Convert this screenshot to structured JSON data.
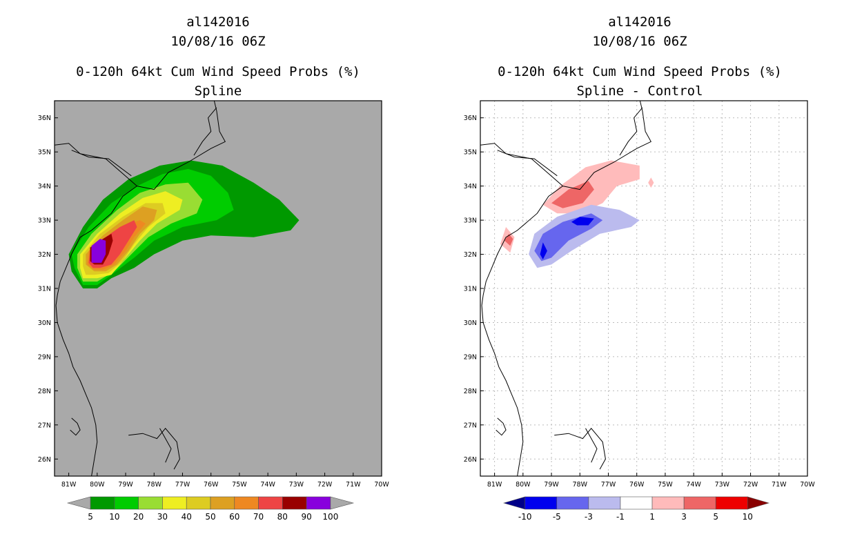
{
  "chart_data": [
    {
      "type": "heatmap",
      "storm_id": "al142016",
      "date": "10/08/16 06Z",
      "title": "0-120h 64kt Cum Wind Speed Probs (%)",
      "subtitle": "Spline",
      "background_color": "#a9a9a9",
      "xlim": [
        -81.5,
        -70
      ],
      "ylim": [
        25.5,
        36.5
      ],
      "x_ticks": [
        "81W",
        "80W",
        "79W",
        "78W",
        "77W",
        "76W",
        "75W",
        "74W",
        "73W",
        "72W",
        "71W",
        "70W"
      ],
      "y_ticks": [
        "26N",
        "27N",
        "28N",
        "29N",
        "30N",
        "31N",
        "32N",
        "33N",
        "34N",
        "35N",
        "36N"
      ],
      "grid": false,
      "colorbar": {
        "labels": [
          "5",
          "10",
          "20",
          "30",
          "40",
          "50",
          "60",
          "70",
          "80",
          "90",
          "100"
        ],
        "colors": [
          "#a9a9a9",
          "#009900",
          "#00cc00",
          "#99dd33",
          "#eeee22",
          "#ddcc22",
          "#dda022",
          "#ee8822",
          "#ee4444",
          "#990000",
          "#8800dd",
          "#a9a9a9"
        ]
      },
      "contours": [
        {
          "level": 5,
          "color": "#009900",
          "points": [
            [
              -80.9,
              31.5
            ],
            [
              -81.0,
              32.0
            ],
            [
              -80.5,
              32.8
            ],
            [
              -79.8,
              33.6
            ],
            [
              -78.9,
              34.2
            ],
            [
              -77.8,
              34.6
            ],
            [
              -76.7,
              34.75
            ],
            [
              -75.6,
              34.6
            ],
            [
              -74.5,
              34.1
            ],
            [
              -73.6,
              33.6
            ],
            [
              -72.9,
              33.0
            ],
            [
              -73.2,
              32.7
            ],
            [
              -74.5,
              32.5
            ],
            [
              -76.0,
              32.55
            ],
            [
              -77.0,
              32.4
            ],
            [
              -78.0,
              32.0
            ],
            [
              -78.7,
              31.6
            ],
            [
              -79.5,
              31.3
            ],
            [
              -80.0,
              31.0
            ],
            [
              -80.5,
              31.0
            ]
          ]
        },
        {
          "level": 10,
          "color": "#00cc00",
          "points": [
            [
              -80.8,
              31.6
            ],
            [
              -80.9,
              32.0
            ],
            [
              -80.3,
              32.8
            ],
            [
              -79.5,
              33.5
            ],
            [
              -78.6,
              34.0
            ],
            [
              -77.7,
              34.35
            ],
            [
              -76.8,
              34.5
            ],
            [
              -76.0,
              34.3
            ],
            [
              -75.4,
              33.8
            ],
            [
              -75.2,
              33.3
            ],
            [
              -75.8,
              33.0
            ],
            [
              -77.0,
              32.8
            ],
            [
              -78.0,
              32.4
            ],
            [
              -78.7,
              31.9
            ],
            [
              -79.5,
              31.4
            ],
            [
              -80.0,
              31.1
            ],
            [
              -80.5,
              31.1
            ]
          ]
        },
        {
          "level": 20,
          "color": "#99dd33",
          "points": [
            [
              -80.7,
              31.6
            ],
            [
              -80.7,
              32.0
            ],
            [
              -80.2,
              32.6
            ],
            [
              -79.3,
              33.3
            ],
            [
              -78.5,
              33.8
            ],
            [
              -77.6,
              34.05
            ],
            [
              -76.8,
              34.1
            ],
            [
              -76.3,
              33.6
            ],
            [
              -76.5,
              33.2
            ],
            [
              -77.4,
              32.9
            ],
            [
              -78.2,
              32.5
            ],
            [
              -78.8,
              32.0
            ],
            [
              -79.4,
              31.5
            ],
            [
              -80.0,
              31.2
            ],
            [
              -80.5,
              31.2
            ]
          ]
        },
        {
          "level": 30,
          "color": "#eeee22",
          "points": [
            [
              -80.6,
              31.6
            ],
            [
              -80.6,
              32.0
            ],
            [
              -80.0,
              32.6
            ],
            [
              -79.2,
              33.2
            ],
            [
              -78.4,
              33.65
            ],
            [
              -77.6,
              33.85
            ],
            [
              -77.0,
              33.6
            ],
            [
              -77.1,
              33.3
            ],
            [
              -77.9,
              32.9
            ],
            [
              -78.5,
              32.4
            ],
            [
              -79.0,
              31.9
            ],
            [
              -79.5,
              31.4
            ],
            [
              -80.0,
              31.3
            ],
            [
              -80.5,
              31.3
            ]
          ]
        },
        {
          "level": 40,
          "color": "#ddcc22",
          "points": [
            [
              -80.5,
              31.65
            ],
            [
              -80.5,
              32.0
            ],
            [
              -79.9,
              32.6
            ],
            [
              -79.1,
              33.1
            ],
            [
              -78.3,
              33.5
            ],
            [
              -77.7,
              33.5
            ],
            [
              -77.6,
              33.2
            ],
            [
              -78.2,
              32.8
            ],
            [
              -78.7,
              32.3
            ],
            [
              -79.1,
              31.8
            ],
            [
              -79.6,
              31.45
            ],
            [
              -80.1,
              31.4
            ],
            [
              -80.4,
              31.4
            ]
          ]
        },
        {
          "level": 50,
          "color": "#dda022",
          "points": [
            [
              -80.4,
              31.7
            ],
            [
              -80.4,
              32.0
            ],
            [
              -79.8,
              32.55
            ],
            [
              -79.1,
              33.0
            ],
            [
              -78.4,
              33.4
            ],
            [
              -77.9,
              33.3
            ],
            [
              -78.0,
              33.0
            ],
            [
              -78.5,
              32.6
            ],
            [
              -78.9,
              32.1
            ],
            [
              -79.3,
              31.7
            ],
            [
              -79.7,
              31.5
            ],
            [
              -80.1,
              31.5
            ]
          ]
        },
        {
          "level": 60,
          "color": "#ee8822",
          "points": [
            [
              -80.35,
              31.7
            ],
            [
              -80.3,
              32.1
            ],
            [
              -79.7,
              32.5
            ],
            [
              -79.0,
              32.85
            ],
            [
              -78.5,
              33.0
            ],
            [
              -78.3,
              32.9
            ],
            [
              -78.7,
              32.5
            ],
            [
              -79.0,
              32.1
            ],
            [
              -79.4,
              31.7
            ],
            [
              -79.8,
              31.55
            ],
            [
              -80.1,
              31.55
            ]
          ]
        },
        {
          "level": 70,
          "color": "#ee4444",
          "points": [
            [
              -80.3,
              31.75
            ],
            [
              -80.25,
              32.1
            ],
            [
              -79.8,
              32.45
            ],
            [
              -79.2,
              32.8
            ],
            [
              -78.7,
              33.0
            ],
            [
              -78.6,
              32.8
            ],
            [
              -78.9,
              32.4
            ],
            [
              -79.2,
              32.0
            ],
            [
              -79.5,
              31.7
            ],
            [
              -79.9,
              31.6
            ],
            [
              -80.15,
              31.6
            ]
          ]
        },
        {
          "level": 80,
          "color": "#990000",
          "points": [
            [
              -80.25,
              31.8
            ],
            [
              -80.25,
              32.2
            ],
            [
              -79.8,
              32.45
            ],
            [
              -79.5,
              32.6
            ],
            [
              -79.45,
              32.4
            ],
            [
              -79.6,
              32.0
            ],
            [
              -79.8,
              31.7
            ],
            [
              -80.1,
              31.7
            ]
          ]
        },
        {
          "level": 90,
          "color": "#8800dd",
          "points": [
            [
              -80.2,
              31.75
            ],
            [
              -80.2,
              32.25
            ],
            [
              -79.9,
              32.45
            ],
            [
              -79.7,
              32.4
            ],
            [
              -79.7,
              32.0
            ],
            [
              -79.85,
              31.75
            ]
          ]
        }
      ]
    },
    {
      "type": "heatmap",
      "storm_id": "al142016",
      "date": "10/08/16 06Z",
      "title": "0-120h 64kt Cum Wind Speed Probs (%)",
      "subtitle": "Spline - Control",
      "background_color": "#ffffff",
      "xlim": [
        -81.5,
        -70
      ],
      "ylim": [
        25.5,
        36.5
      ],
      "x_ticks": [
        "81W",
        "80W",
        "79W",
        "78W",
        "77W",
        "76W",
        "75W",
        "74W",
        "73W",
        "72W",
        "71W",
        "70W"
      ],
      "y_ticks": [
        "26N",
        "27N",
        "28N",
        "29N",
        "30N",
        "31N",
        "32N",
        "33N",
        "34N",
        "35N",
        "36N"
      ],
      "grid": true,
      "colorbar": {
        "labels": [
          "-10",
          "-5",
          "-3",
          "-1",
          "1",
          "3",
          "5",
          "10"
        ],
        "colors": [
          "#000088",
          "#0000ee",
          "#6666ee",
          "#bbbbee",
          "#ffffff",
          "#ffbbbb",
          "#ee6666",
          "#ee0000",
          "#880000"
        ]
      },
      "contours": [
        {
          "level": 1,
          "color": "#ffbbbb",
          "points": [
            [
              -79.3,
              33.45
            ],
            [
              -78.7,
              34.0
            ],
            [
              -77.8,
              34.55
            ],
            [
              -76.9,
              34.75
            ],
            [
              -75.9,
              34.6
            ],
            [
              -75.9,
              34.2
            ],
            [
              -76.7,
              34.0
            ],
            [
              -77.2,
              33.5
            ],
            [
              -78.0,
              33.2
            ],
            [
              -78.8,
              33.2
            ]
          ]
        },
        {
          "level": 3,
          "color": "#ee6666",
          "points": [
            [
              -79.0,
              33.5
            ],
            [
              -78.4,
              33.9
            ],
            [
              -77.7,
              34.15
            ],
            [
              -77.5,
              33.9
            ],
            [
              -77.9,
              33.5
            ],
            [
              -78.6,
              33.35
            ]
          ]
        },
        {
          "level": 1,
          "color": "#ffbbbb",
          "points": [
            [
              -80.8,
              32.3
            ],
            [
              -80.6,
              32.8
            ],
            [
              -80.3,
              32.5
            ],
            [
              -80.45,
              32.05
            ]
          ]
        },
        {
          "level": 3,
          "color": "#ee6666",
          "points": [
            [
              -80.65,
              32.4
            ],
            [
              -80.5,
              32.6
            ],
            [
              -80.35,
              32.45
            ],
            [
              -80.45,
              32.25
            ]
          ]
        },
        {
          "level": 1,
          "color": "#ffbbbb",
          "points": [
            [
              -75.6,
              34.1
            ],
            [
              -75.5,
              34.25
            ],
            [
              -75.4,
              34.1
            ],
            [
              -75.5,
              33.95
            ]
          ]
        },
        {
          "level": -1,
          "color": "#bbbbee",
          "points": [
            [
              -79.8,
              32.0
            ],
            [
              -79.6,
              32.6
            ],
            [
              -78.8,
              33.1
            ],
            [
              -77.6,
              33.45
            ],
            [
              -76.6,
              33.3
            ],
            [
              -75.9,
              33.0
            ],
            [
              -76.2,
              32.8
            ],
            [
              -77.3,
              32.6
            ],
            [
              -78.3,
              32.1
            ],
            [
              -79.0,
              31.7
            ],
            [
              -79.5,
              31.6
            ]
          ]
        },
        {
          "level": -3,
          "color": "#6666ee",
          "points": [
            [
              -79.6,
              32.1
            ],
            [
              -79.3,
              32.6
            ],
            [
              -78.6,
              32.95
            ],
            [
              -77.6,
              33.2
            ],
            [
              -77.2,
              33.0
            ],
            [
              -77.6,
              32.75
            ],
            [
              -78.4,
              32.4
            ],
            [
              -79.0,
              31.9
            ],
            [
              -79.35,
              31.8
            ]
          ]
        },
        {
          "level": -5,
          "color": "#0000ee",
          "points": [
            [
              -78.3,
              32.95
            ],
            [
              -78.0,
              33.1
            ],
            [
              -77.5,
              33.05
            ],
            [
              -77.7,
              32.85
            ],
            [
              -78.1,
              32.85
            ]
          ]
        },
        {
          "level": -5,
          "color": "#0000ee",
          "points": [
            [
              -79.4,
              32.0
            ],
            [
              -79.3,
              32.35
            ],
            [
              -79.15,
              32.1
            ],
            [
              -79.3,
              31.85
            ]
          ]
        }
      ]
    }
  ]
}
